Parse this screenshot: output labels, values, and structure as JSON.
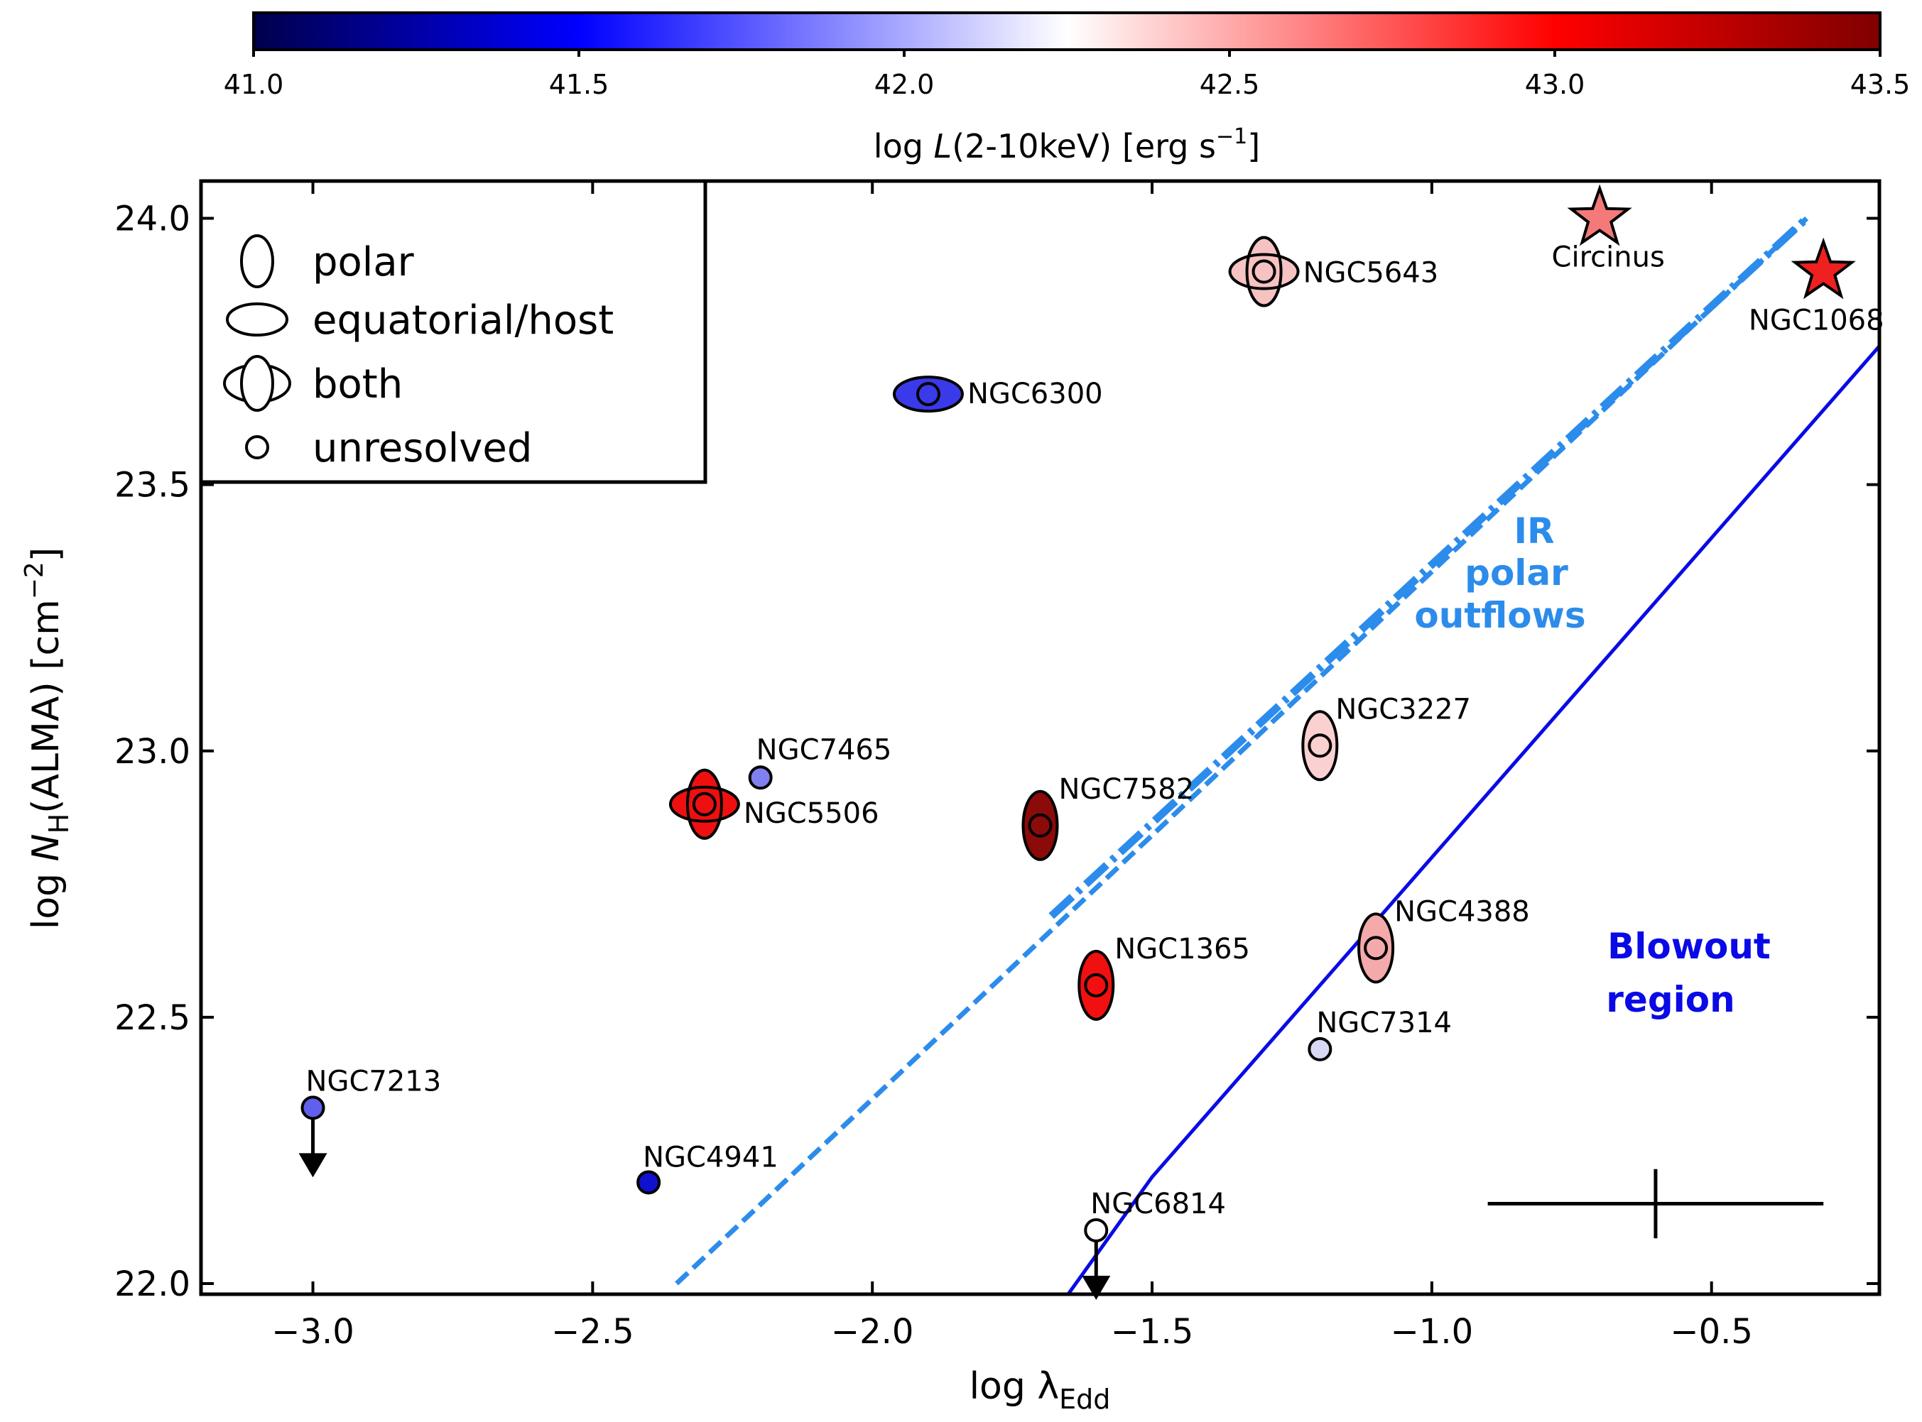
{
  "chart_data": {
    "type": "scatter",
    "title": "",
    "xlabel": "log λ",
    "xlabel_sub": "Edd",
    "ylabel_pre": "log ",
    "ylabel_n": "N",
    "ylabel_sub": "H",
    "ylabel_post": "(ALMA) [cm",
    "ylabel_sup": "−2",
    "ylabel_end": "]",
    "xlim": [
      -3.2,
      -0.2
    ],
    "ylim": [
      21.98,
      24.07
    ],
    "xticks": [
      -3.0,
      -2.5,
      -2.0,
      -1.5,
      -1.0,
      -0.5
    ],
    "xtick_labels": [
      "−3.0",
      "−2.5",
      "−2.0",
      "−1.5",
      "−1.0",
      "−0.5"
    ],
    "yticks": [
      22.0,
      22.5,
      23.0,
      23.5,
      24.0
    ],
    "ytick_labels": [
      "22.0",
      "22.5",
      "23.0",
      "23.5",
      "24.0"
    ],
    "colorbar": {
      "label_pre": "log ",
      "label_l": "L",
      "label_post": "(2-10keV) [erg s",
      "label_sup": "−1",
      "label_end": "]",
      "range": [
        41.0,
        43.5
      ],
      "ticks": [
        41.0,
        41.5,
        42.0,
        42.5,
        43.0,
        43.5
      ],
      "tick_labels": [
        "41.0",
        "41.5",
        "42.0",
        "42.5",
        "43.0",
        "43.5"
      ],
      "colors": [
        "#00004c",
        "#0000ff",
        "#ffffff",
        "#ff0000",
        "#800000"
      ]
    },
    "legend": [
      {
        "marker": "polar",
        "label": "polar"
      },
      {
        "marker": "equatorial",
        "label": "equatorial/host"
      },
      {
        "marker": "both",
        "label": "both"
      },
      {
        "marker": "unresolved",
        "label": "unresolved"
      }
    ],
    "points": [
      {
        "name": "NGC5643",
        "x": -1.3,
        "y": 23.9,
        "type": "both",
        "color": "#f6c2c2"
      },
      {
        "name": "NGC6300",
        "x": -1.9,
        "y": 23.67,
        "type": "equatorial",
        "color": "#3a3ae8"
      },
      {
        "name": "NGC7465",
        "x": -2.2,
        "y": 22.95,
        "type": "unresolved",
        "color": "#8080f0"
      },
      {
        "name": "NGC5506",
        "x": -2.3,
        "y": 22.9,
        "type": "both",
        "color": "#ee1010"
      },
      {
        "name": "NGC7582",
        "x": -1.7,
        "y": 22.86,
        "type": "polar",
        "color": "#8b0a0a"
      },
      {
        "name": "NGC3227",
        "x": -1.2,
        "y": 23.01,
        "type": "polar",
        "color": "#fbd0d0"
      },
      {
        "name": "NGC1365",
        "x": -1.6,
        "y": 22.56,
        "type": "polar",
        "color": "#f01010"
      },
      {
        "name": "NGC4388",
        "x": -1.1,
        "y": 22.63,
        "type": "polar",
        "color": "#f4aaaa"
      },
      {
        "name": "NGC7314",
        "x": -1.2,
        "y": 22.44,
        "type": "unresolved",
        "color": "#d8d8f4"
      },
      {
        "name": "NGC7213",
        "x": -3.0,
        "y": 22.33,
        "type": "unresolved",
        "color": "#6060ec",
        "upper_limit": true
      },
      {
        "name": "NGC4941",
        "x": -2.4,
        "y": 22.19,
        "type": "unresolved",
        "color": "#1010d0"
      },
      {
        "name": "NGC6814",
        "x": -1.6,
        "y": 22.1,
        "type": "unresolved",
        "color": "#ffffff",
        "upper_limit": true
      }
    ],
    "stars": [
      {
        "name": "Circinus",
        "x": -0.7,
        "y": 24.0,
        "color": "#f47a7a"
      },
      {
        "name": "NGC1068",
        "x": -0.3,
        "y": 23.9,
        "color": "#ee2020"
      }
    ],
    "lines": [
      {
        "name": "ir-polar-outflows-dashed",
        "style": "dashed",
        "color": "#2c8ceb",
        "points": [
          [
            -2.35,
            22.0
          ],
          [
            -0.33,
            24.0
          ]
        ]
      },
      {
        "name": "ir-polar-outflows-dashdot",
        "style": "dashdot",
        "color": "#2c8ceb",
        "points": [
          [
            -1.68,
            22.69
          ],
          [
            -0.33,
            24.0
          ]
        ]
      },
      {
        "name": "blowout-boundary",
        "style": "solid",
        "color": "#0a0ae6",
        "points": [
          [
            -1.65,
            21.98
          ],
          [
            -1.5,
            22.2
          ],
          [
            -0.2,
            23.76
          ]
        ]
      }
    ],
    "error_bar": {
      "x": -0.6,
      "y": 22.15,
      "xerr": 0.3,
      "yerr": 0.065
    },
    "annotations": {
      "ir": [
        "IR",
        "polar",
        "outflows"
      ],
      "blowout": [
        "Blowout",
        "region"
      ]
    },
    "region_colors": {
      "ir": "#2c8ceb",
      "blowout": "#0a0ae6"
    }
  }
}
